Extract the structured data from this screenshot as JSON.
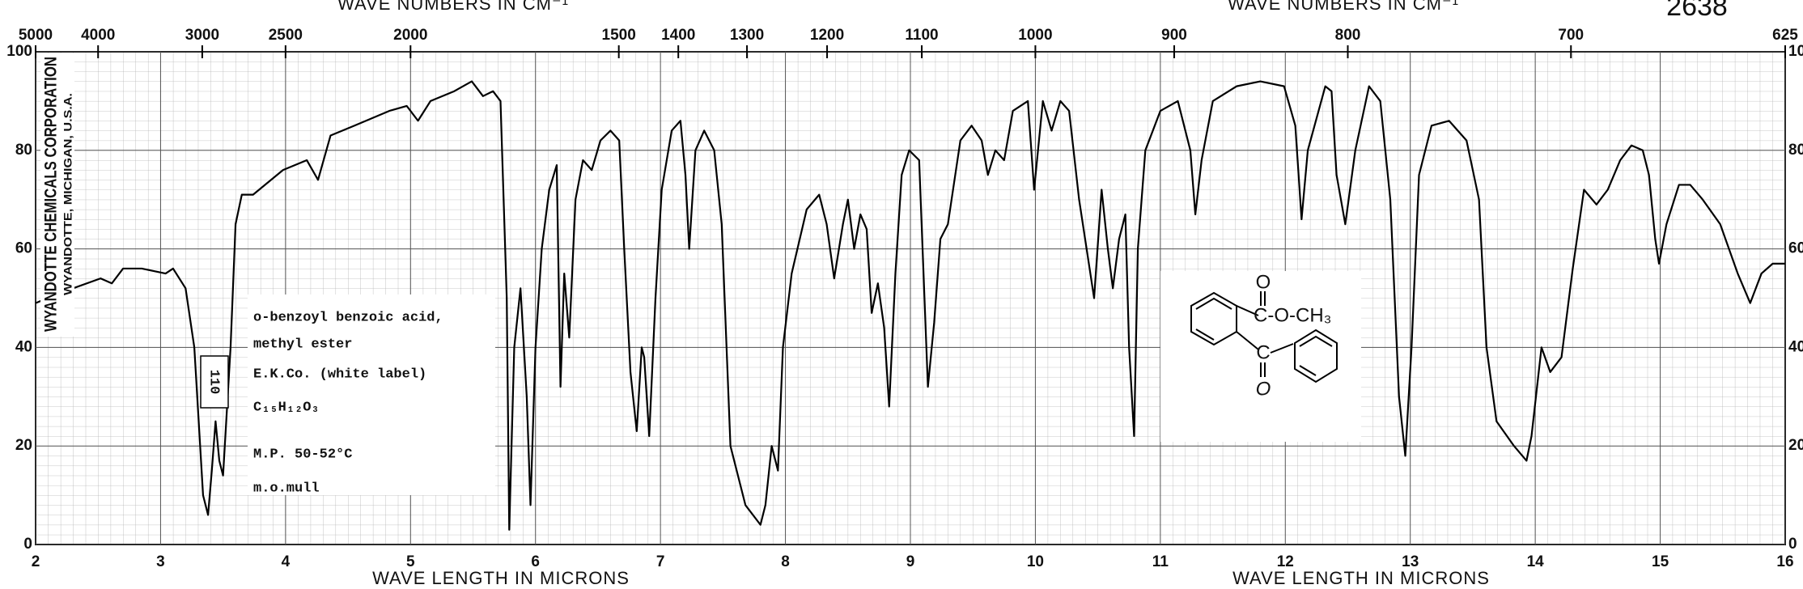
{
  "chart_data": {
    "type": "line",
    "chart_number": "2638",
    "x_label": "WAVE LENGTH IN MICRONS",
    "x2_label": "WAVE NUMBERS IN CM⁻¹",
    "sidebar": [
      "WYANDOTTE CHEMICALS CORPORATION",
      "WYANDOTTE, MICHIGAN, U.S.A."
    ],
    "sample_label": [
      "o-benzoyl benzoic acid,",
      "methyl ester",
      "E.K.Co. (white label)",
      "C₁₅H₁₂O₃",
      "M.P. 50-52°C",
      "m.o.mull"
    ],
    "cell_label": "110",
    "structure_labels": [
      "O",
      "C-O-CH₃",
      "C",
      "O"
    ],
    "xlim": [
      2,
      16
    ],
    "xticks": [
      2,
      3,
      4,
      5,
      6,
      7,
      8,
      9,
      10,
      11,
      12,
      13,
      14,
      15,
      16
    ],
    "x2lim": [
      5000,
      625
    ],
    "x2_scale": "reciprocal",
    "x2ticks": [
      5000,
      4000,
      3000,
      2500,
      2000,
      1500,
      1400,
      1300,
      1200,
      1100,
      1000,
      900,
      800,
      700,
      625
    ],
    "ylim": [
      0,
      100
    ],
    "yticks": [
      0,
      20,
      40,
      60,
      80,
      100
    ],
    "grid": true,
    "x": [
      2.0,
      2.19,
      2.52,
      2.61,
      2.7,
      2.85,
      3.04,
      3.1,
      3.2,
      3.27,
      3.34,
      3.38,
      3.41,
      3.44,
      3.47,
      3.5,
      3.56,
      3.6,
      3.65,
      3.74,
      3.98,
      4.17,
      4.26,
      4.36,
      4.55,
      4.83,
      4.97,
      5.06,
      5.16,
      5.35,
      5.49,
      5.58,
      5.66,
      5.72,
      5.77,
      5.79,
      5.83,
      5.88,
      5.93,
      5.96,
      6.0,
      6.05,
      6.11,
      6.17,
      6.2,
      6.23,
      6.27,
      6.32,
      6.38,
      6.45,
      6.52,
      6.6,
      6.67,
      6.71,
      6.76,
      6.81,
      6.85,
      6.87,
      6.91,
      6.96,
      7.01,
      7.09,
      7.16,
      7.2,
      7.23,
      7.28,
      7.35,
      7.43,
      7.49,
      7.56,
      7.61,
      7.68,
      7.8,
      7.84,
      7.89,
      7.94,
      7.98,
      8.05,
      8.17,
      8.27,
      8.33,
      8.39,
      8.46,
      8.5,
      8.55,
      8.6,
      8.65,
      8.69,
      8.74,
      8.79,
      8.83,
      8.88,
      8.93,
      8.99,
      9.07,
      9.14,
      9.19,
      9.24,
      9.3,
      9.4,
      9.49,
      9.57,
      9.62,
      9.68,
      9.75,
      9.82,
      9.94,
      9.99,
      10.06,
      10.13,
      10.2,
      10.27,
      10.35,
      10.41,
      10.47,
      10.53,
      10.58,
      10.62,
      10.67,
      10.72,
      10.75,
      10.79,
      10.82,
      10.88,
      11.0,
      11.14,
      11.24,
      11.28,
      11.33,
      11.42,
      11.61,
      11.8,
      11.99,
      12.08,
      12.13,
      12.18,
      12.32,
      12.37,
      12.41,
      12.48,
      12.56,
      12.67,
      12.76,
      12.84,
      12.91,
      12.96,
      13.01,
      13.07,
      13.17,
      13.31,
      13.45,
      13.55,
      13.61,
      13.69,
      13.83,
      13.93,
      13.97,
      14.05,
      14.12,
      14.21,
      14.3,
      14.39,
      14.49,
      14.58,
      14.68,
      14.77,
      14.86,
      14.91,
      14.96,
      14.99,
      15.05,
      15.15,
      15.24,
      15.34,
      15.48,
      15.62,
      15.72,
      15.81,
      15.9,
      16.0
    ],
    "series": [
      {
        "color": "#000000",
        "values": [
          49,
          51,
          54,
          53,
          56,
          56,
          55,
          56,
          52,
          40,
          10,
          6,
          15,
          25,
          17,
          14,
          40,
          65,
          71,
          71,
          76,
          78,
          74,
          83,
          85,
          88,
          89,
          86,
          90,
          92,
          94,
          91,
          92,
          90,
          50,
          3,
          40,
          52,
          30,
          8,
          40,
          60,
          72,
          77,
          32,
          55,
          42,
          70,
          78,
          76,
          82,
          84,
          82,
          60,
          35,
          23,
          40,
          38,
          22,
          50,
          72,
          84,
          86,
          75,
          60,
          80,
          84,
          80,
          65,
          20,
          15,
          8,
          4,
          8,
          20,
          15,
          40,
          55,
          68,
          71,
          65,
          54,
          65,
          70,
          60,
          67,
          64,
          47,
          53,
          44,
          28,
          55,
          75,
          80,
          78,
          32,
          45,
          62,
          65,
          82,
          85,
          82,
          75,
          80,
          78,
          88,
          90,
          72,
          90,
          84,
          90,
          88,
          70,
          60,
          50,
          72,
          60,
          52,
          62,
          67,
          40,
          22,
          60,
          80,
          88,
          90,
          80,
          67,
          78,
          90,
          93,
          94,
          93,
          85,
          66,
          80,
          93,
          92,
          75,
          65,
          80,
          93,
          90,
          70,
          30,
          18,
          40,
          75,
          85,
          86,
          82,
          70,
          40,
          25,
          20,
          17,
          22,
          40,
          35,
          38,
          56,
          72,
          69,
          72,
          78,
          81,
          80,
          75,
          62,
          57,
          65,
          73,
          73,
          70,
          65,
          55,
          49,
          55,
          57,
          57
        ]
      }
    ]
  }
}
